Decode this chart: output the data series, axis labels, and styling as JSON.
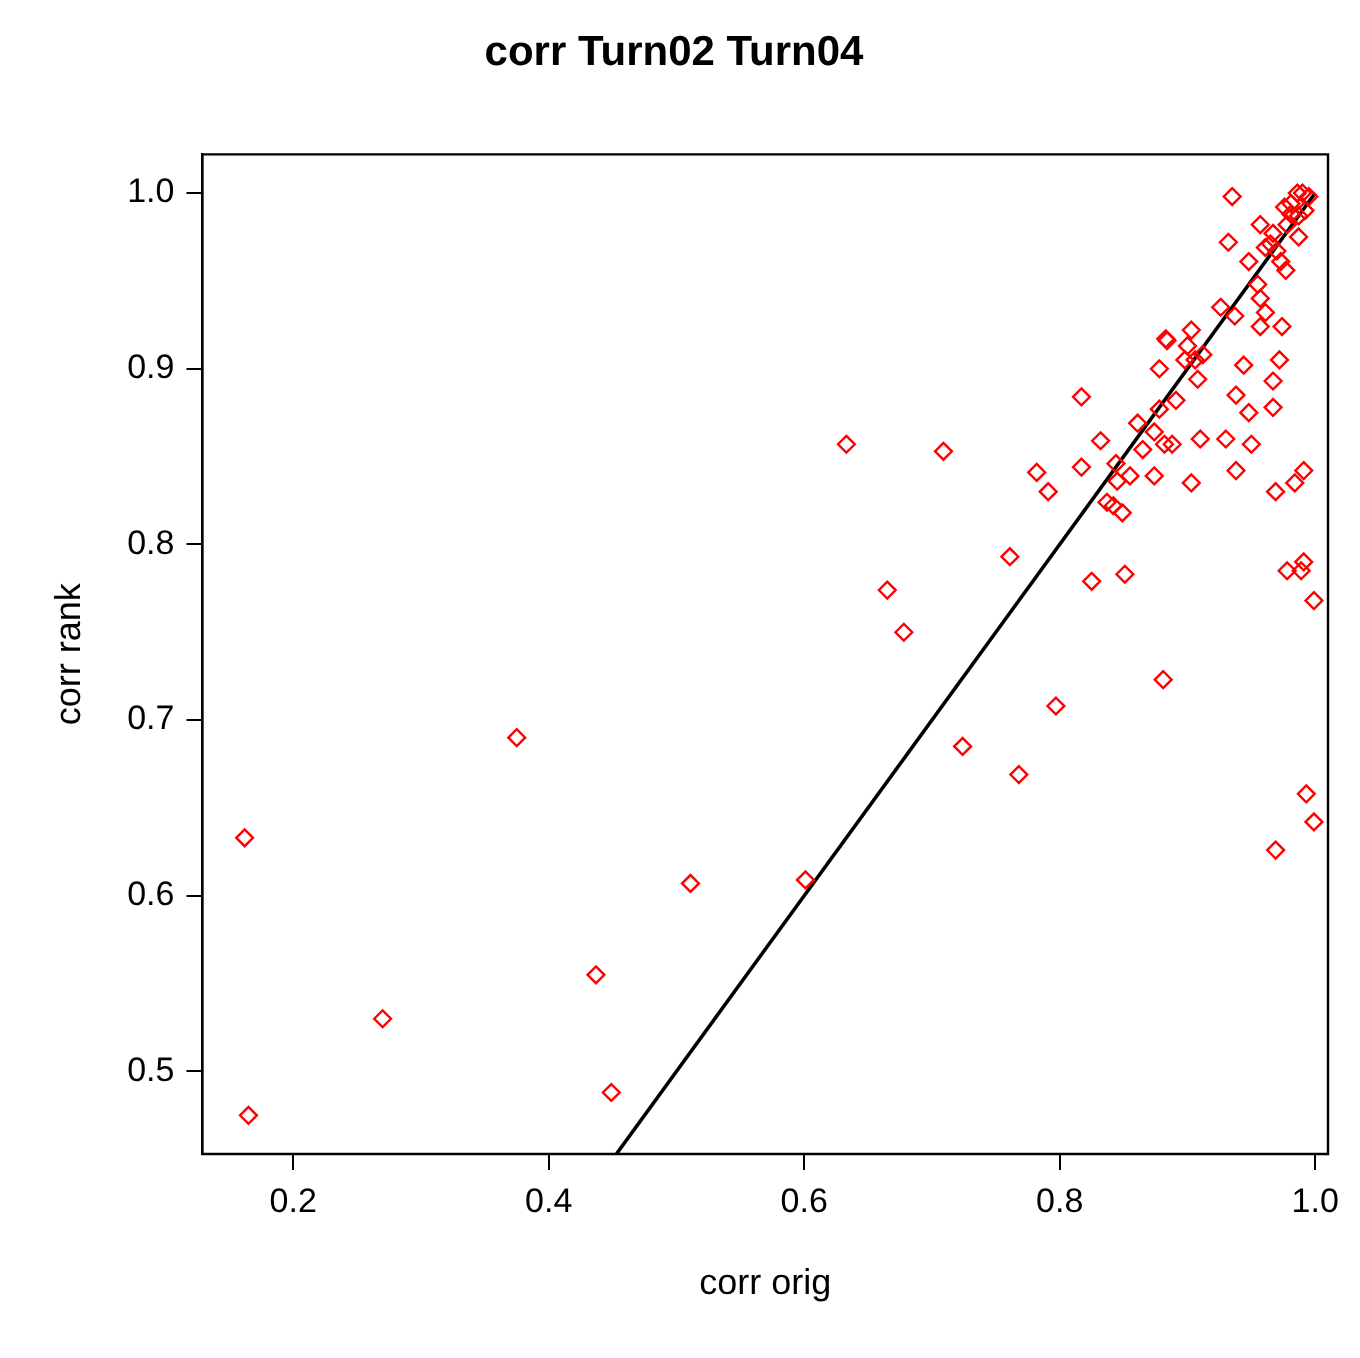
{
  "chart_data": {
    "type": "scatter",
    "title": "corr Turn02 Turn04",
    "xlabel": "corr orig",
    "ylabel": "corr rank",
    "xlim": [
      0.129,
      1.01
    ],
    "ylim": [
      0.453,
      1.022
    ],
    "xticks": [
      0.2,
      0.4,
      0.6,
      0.8,
      {
        "value": 1,
        "label": "1.0"
      }
    ],
    "yticks": [
      0.5,
      0.6,
      0.7,
      0.8,
      0.9,
      {
        "value": 1,
        "label": "1.0"
      }
    ],
    "grid": false,
    "legend": false,
    "series": [
      {
        "color": "#ff0000",
        "marker": "diamond",
        "x": [
          0.162,
          0.165,
          0.27,
          0.375,
          0.437,
          0.449,
          0.511,
          0.601,
          0.633,
          0.709,
          0.665,
          0.678,
          0.724,
          0.768,
          0.761,
          0.797,
          0.782,
          0.791,
          0.817,
          0.817,
          0.832,
          0.825,
          0.851,
          0.837,
          0.842,
          0.849,
          0.844,
          0.855,
          0.845,
          0.861,
          0.865,
          0.874,
          0.881,
          0.874,
          0.878,
          0.882,
          0.888,
          0.891,
          0.878,
          0.883,
          0.884,
          0.903,
          0.908,
          0.903,
          0.91,
          0.9,
          0.906,
          0.912,
          0.898,
          0.926,
          0.937,
          0.93,
          0.938,
          0.938,
          0.944,
          0.948,
          0.95,
          0.935,
          0.932,
          0.948,
          0.957,
          0.955,
          0.957,
          0.961,
          0.957,
          0.974,
          0.972,
          0.967,
          0.967,
          0.969,
          0.984,
          0.991,
          0.978,
          0.989,
          0.991,
          0.999,
          0.969,
          0.993,
          0.999,
          0.965,
          0.97,
          0.977,
          0.973,
          0.987,
          0.976,
          0.981,
          0.986,
          0.99,
          0.995,
          0.978,
          0.981,
          0.987,
          0.992,
          0.961,
          0.967
        ],
        "values": [
          0.633,
          0.475,
          0.53,
          0.69,
          0.555,
          0.488,
          0.607,
          0.609,
          0.857,
          0.853,
          0.774,
          0.75,
          0.685,
          0.669,
          0.793,
          0.708,
          0.841,
          0.83,
          0.884,
          0.844,
          0.859,
          0.779,
          0.783,
          0.824,
          0.822,
          0.818,
          0.846,
          0.839,
          0.836,
          0.869,
          0.854,
          0.839,
          0.723,
          0.864,
          0.877,
          0.857,
          0.857,
          0.882,
          0.9,
          0.917,
          0.916,
          0.922,
          0.894,
          0.835,
          0.86,
          0.913,
          0.905,
          0.908,
          0.905,
          0.935,
          0.93,
          0.86,
          0.885,
          0.842,
          0.902,
          0.875,
          0.857,
          0.998,
          0.972,
          0.961,
          0.982,
          0.948,
          0.94,
          0.932,
          0.924,
          0.924,
          0.905,
          0.893,
          0.878,
          0.83,
          0.835,
          0.842,
          0.785,
          0.785,
          0.79,
          0.768,
          0.626,
          0.658,
          0.642,
          0.971,
          0.967,
          0.956,
          0.961,
          0.975,
          0.992,
          0.988,
          1.0,
          1.0,
          0.998,
          0.982,
          0.994,
          0.987,
          0.99,
          0.969,
          0.977
        ]
      },
      {
        "type": "line",
        "color": "#000000",
        "marker": "none",
        "line_style": "solid",
        "x": [
          0.453,
          1.0
        ],
        "values": [
          0.453,
          1.0
        ]
      }
    ]
  }
}
